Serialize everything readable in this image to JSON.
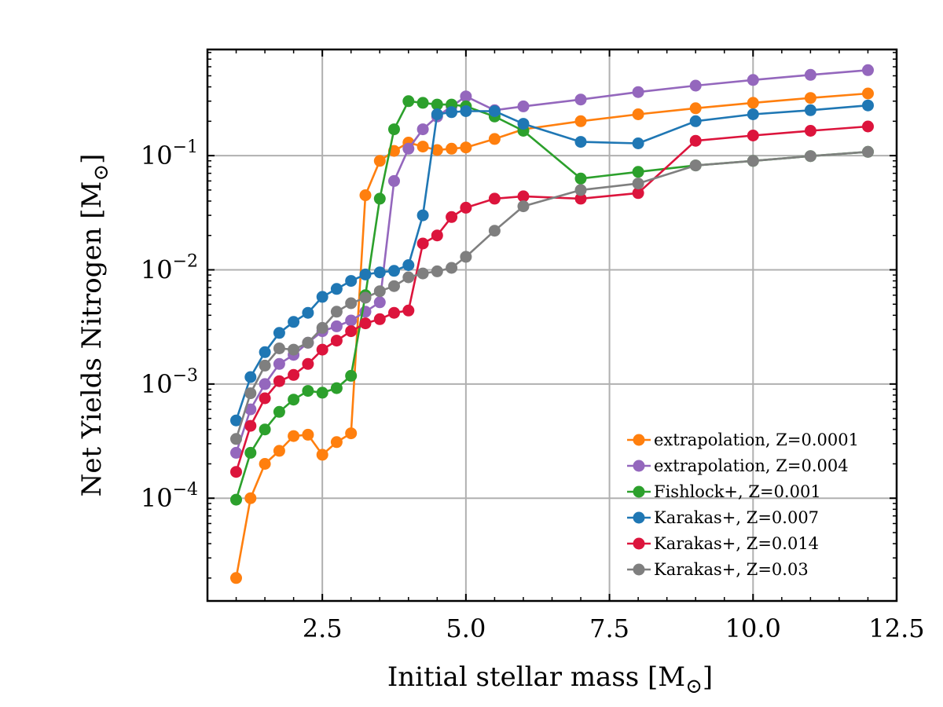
{
  "chart_data": {
    "type": "line",
    "xlabel": "Initial stellar mass [M",
    "xlabel_sub": "⊙",
    "xlabel_end": "]",
    "ylabel": "Net Yields Nitrogen [M",
    "ylabel_sub": "⊙",
    "ylabel_end": "]",
    "xscale": "linear",
    "yscale": "log",
    "xlim": [
      0.5,
      12.5
    ],
    "ylim": [
      1.26e-05,
      0.85
    ],
    "xticks": [
      2.5,
      5.0,
      7.5,
      10.0,
      12.5
    ],
    "xtick_labels": [
      "2.5",
      "5.0",
      "7.5",
      "10.0",
      "12.5"
    ],
    "yticks": [
      0.0001,
      0.001,
      0.01,
      0.1
    ],
    "ytick_labels": [
      {
        "base": "10",
        "exp": "−4"
      },
      {
        "base": "10",
        "exp": "−3"
      },
      {
        "base": "10",
        "exp": "−2"
      },
      {
        "base": "10",
        "exp": "−1"
      }
    ],
    "grid": true,
    "legend_position": "lower-right",
    "series": [
      {
        "name": "extrapolation, Z=0.0001",
        "color": "#ff7f0e",
        "points": [
          [
            1.0,
            2e-05
          ],
          [
            1.25,
            0.0001
          ],
          [
            1.5,
            0.0002
          ],
          [
            1.75,
            0.00026
          ],
          [
            2.0,
            0.00035
          ],
          [
            2.25,
            0.00036
          ],
          [
            2.5,
            0.00024
          ],
          [
            2.75,
            0.00031
          ],
          [
            3.0,
            0.00037
          ],
          [
            3.25,
            0.045
          ],
          [
            3.5,
            0.09
          ],
          [
            3.75,
            0.11
          ],
          [
            4.0,
            0.13
          ],
          [
            4.25,
            0.12
          ],
          [
            4.5,
            0.112
          ],
          [
            4.75,
            0.115
          ],
          [
            5.0,
            0.118
          ],
          [
            5.5,
            0.14
          ],
          [
            6.0,
            0.17
          ],
          [
            7.0,
            0.2
          ],
          [
            8.0,
            0.23
          ],
          [
            9.0,
            0.26
          ],
          [
            10.0,
            0.29
          ],
          [
            11.0,
            0.32
          ],
          [
            12.0,
            0.35
          ]
        ]
      },
      {
        "name": "extrapolation, Z=0.004",
        "color": "#9467bd",
        "points": [
          [
            1.0,
            0.00025
          ],
          [
            1.25,
            0.0006
          ],
          [
            1.5,
            0.001
          ],
          [
            1.75,
            0.0015
          ],
          [
            2.0,
            0.0018
          ],
          [
            2.25,
            0.0023
          ],
          [
            2.5,
            0.0029
          ],
          [
            2.75,
            0.0032
          ],
          [
            3.0,
            0.0036
          ],
          [
            3.25,
            0.0043
          ],
          [
            3.5,
            0.0052
          ],
          [
            3.75,
            0.06
          ],
          [
            4.0,
            0.115
          ],
          [
            4.25,
            0.17
          ],
          [
            4.5,
            0.22
          ],
          [
            4.75,
            0.27
          ],
          [
            5.0,
            0.33
          ],
          [
            5.5,
            0.25
          ],
          [
            6.0,
            0.27
          ],
          [
            7.0,
            0.31
          ],
          [
            8.0,
            0.36
          ],
          [
            9.0,
            0.41
          ],
          [
            10.0,
            0.46
          ],
          [
            11.0,
            0.51
          ],
          [
            12.0,
            0.56
          ]
        ]
      },
      {
        "name": "Fishlock+, Z=0.001",
        "color": "#2ca02c",
        "points": [
          [
            1.0,
            9.7e-05
          ],
          [
            1.25,
            0.00025
          ],
          [
            1.5,
            0.0004
          ],
          [
            1.75,
            0.00057
          ],
          [
            2.0,
            0.00073
          ],
          [
            2.25,
            0.00087
          ],
          [
            2.5,
            0.00084
          ],
          [
            2.75,
            0.00092
          ],
          [
            3.0,
            0.00118
          ],
          [
            3.25,
            0.006
          ],
          [
            3.5,
            0.042
          ],
          [
            3.75,
            0.17
          ],
          [
            4.0,
            0.3
          ],
          [
            4.25,
            0.29
          ],
          [
            4.5,
            0.28
          ],
          [
            4.75,
            0.28
          ],
          [
            5.0,
            0.27
          ],
          [
            5.5,
            0.22
          ],
          [
            6.0,
            0.165
          ],
          [
            7.0,
            0.063
          ],
          [
            8.0,
            0.072
          ],
          [
            9.0,
            0.082
          ],
          [
            10.0,
            0.09
          ],
          [
            11.0,
            0.099
          ],
          [
            12.0,
            0.108
          ]
        ]
      },
      {
        "name": "Karakas+, Z=0.007",
        "color": "#1f77b4",
        "points": [
          [
            1.0,
            0.00048
          ],
          [
            1.25,
            0.00115
          ],
          [
            1.5,
            0.0019
          ],
          [
            1.75,
            0.0028
          ],
          [
            2.0,
            0.0035
          ],
          [
            2.25,
            0.0042
          ],
          [
            2.5,
            0.0058
          ],
          [
            2.75,
            0.0068
          ],
          [
            3.0,
            0.008
          ],
          [
            3.25,
            0.0091
          ],
          [
            3.5,
            0.0095
          ],
          [
            3.75,
            0.0098
          ],
          [
            4.0,
            0.011
          ],
          [
            4.25,
            0.03
          ],
          [
            4.5,
            0.23
          ],
          [
            4.75,
            0.24
          ],
          [
            5.0,
            0.245
          ],
          [
            5.5,
            0.245
          ],
          [
            6.0,
            0.19
          ],
          [
            7.0,
            0.132
          ],
          [
            8.0,
            0.128
          ],
          [
            9.0,
            0.2
          ],
          [
            10.0,
            0.23
          ],
          [
            11.0,
            0.25
          ],
          [
            12.0,
            0.275
          ]
        ]
      },
      {
        "name": "Karakas+, Z=0.014",
        "color": "#dc143c",
        "points": [
          [
            1.0,
            0.00017
          ],
          [
            1.25,
            0.00043
          ],
          [
            1.5,
            0.00075
          ],
          [
            1.75,
            0.00106
          ],
          [
            2.0,
            0.0012
          ],
          [
            2.25,
            0.0015
          ],
          [
            2.5,
            0.002
          ],
          [
            2.75,
            0.0024
          ],
          [
            3.0,
            0.0029
          ],
          [
            3.25,
            0.0034
          ],
          [
            3.5,
            0.0037
          ],
          [
            3.75,
            0.0042
          ],
          [
            4.0,
            0.0044
          ],
          [
            4.25,
            0.017
          ],
          [
            4.5,
            0.02
          ],
          [
            4.75,
            0.029
          ],
          [
            5.0,
            0.035
          ],
          [
            5.5,
            0.042
          ],
          [
            6.0,
            0.044
          ],
          [
            7.0,
            0.042
          ],
          [
            8.0,
            0.047
          ],
          [
            9.0,
            0.135
          ],
          [
            10.0,
            0.15
          ],
          [
            11.0,
            0.165
          ],
          [
            12.0,
            0.18
          ]
        ]
      },
      {
        "name": "Karakas+, Z=0.03",
        "color": "#7f7f7f",
        "points": [
          [
            1.0,
            0.00033
          ],
          [
            1.25,
            0.00083
          ],
          [
            1.5,
            0.00145
          ],
          [
            1.75,
            0.00205
          ],
          [
            2.0,
            0.002
          ],
          [
            2.25,
            0.0023
          ],
          [
            2.5,
            0.0031
          ],
          [
            2.75,
            0.0043
          ],
          [
            3.0,
            0.0051
          ],
          [
            3.25,
            0.0057
          ],
          [
            3.5,
            0.0065
          ],
          [
            3.75,
            0.0072
          ],
          [
            4.0,
            0.0086
          ],
          [
            4.25,
            0.0093
          ],
          [
            4.5,
            0.0097
          ],
          [
            4.75,
            0.0104
          ],
          [
            5.0,
            0.013
          ],
          [
            5.5,
            0.022
          ],
          [
            6.0,
            0.036
          ],
          [
            7.0,
            0.05
          ],
          [
            8.0,
            0.057
          ],
          [
            9.0,
            0.082
          ],
          [
            10.0,
            0.09
          ],
          [
            11.0,
            0.099
          ],
          [
            12.0,
            0.108
          ]
        ]
      }
    ]
  }
}
